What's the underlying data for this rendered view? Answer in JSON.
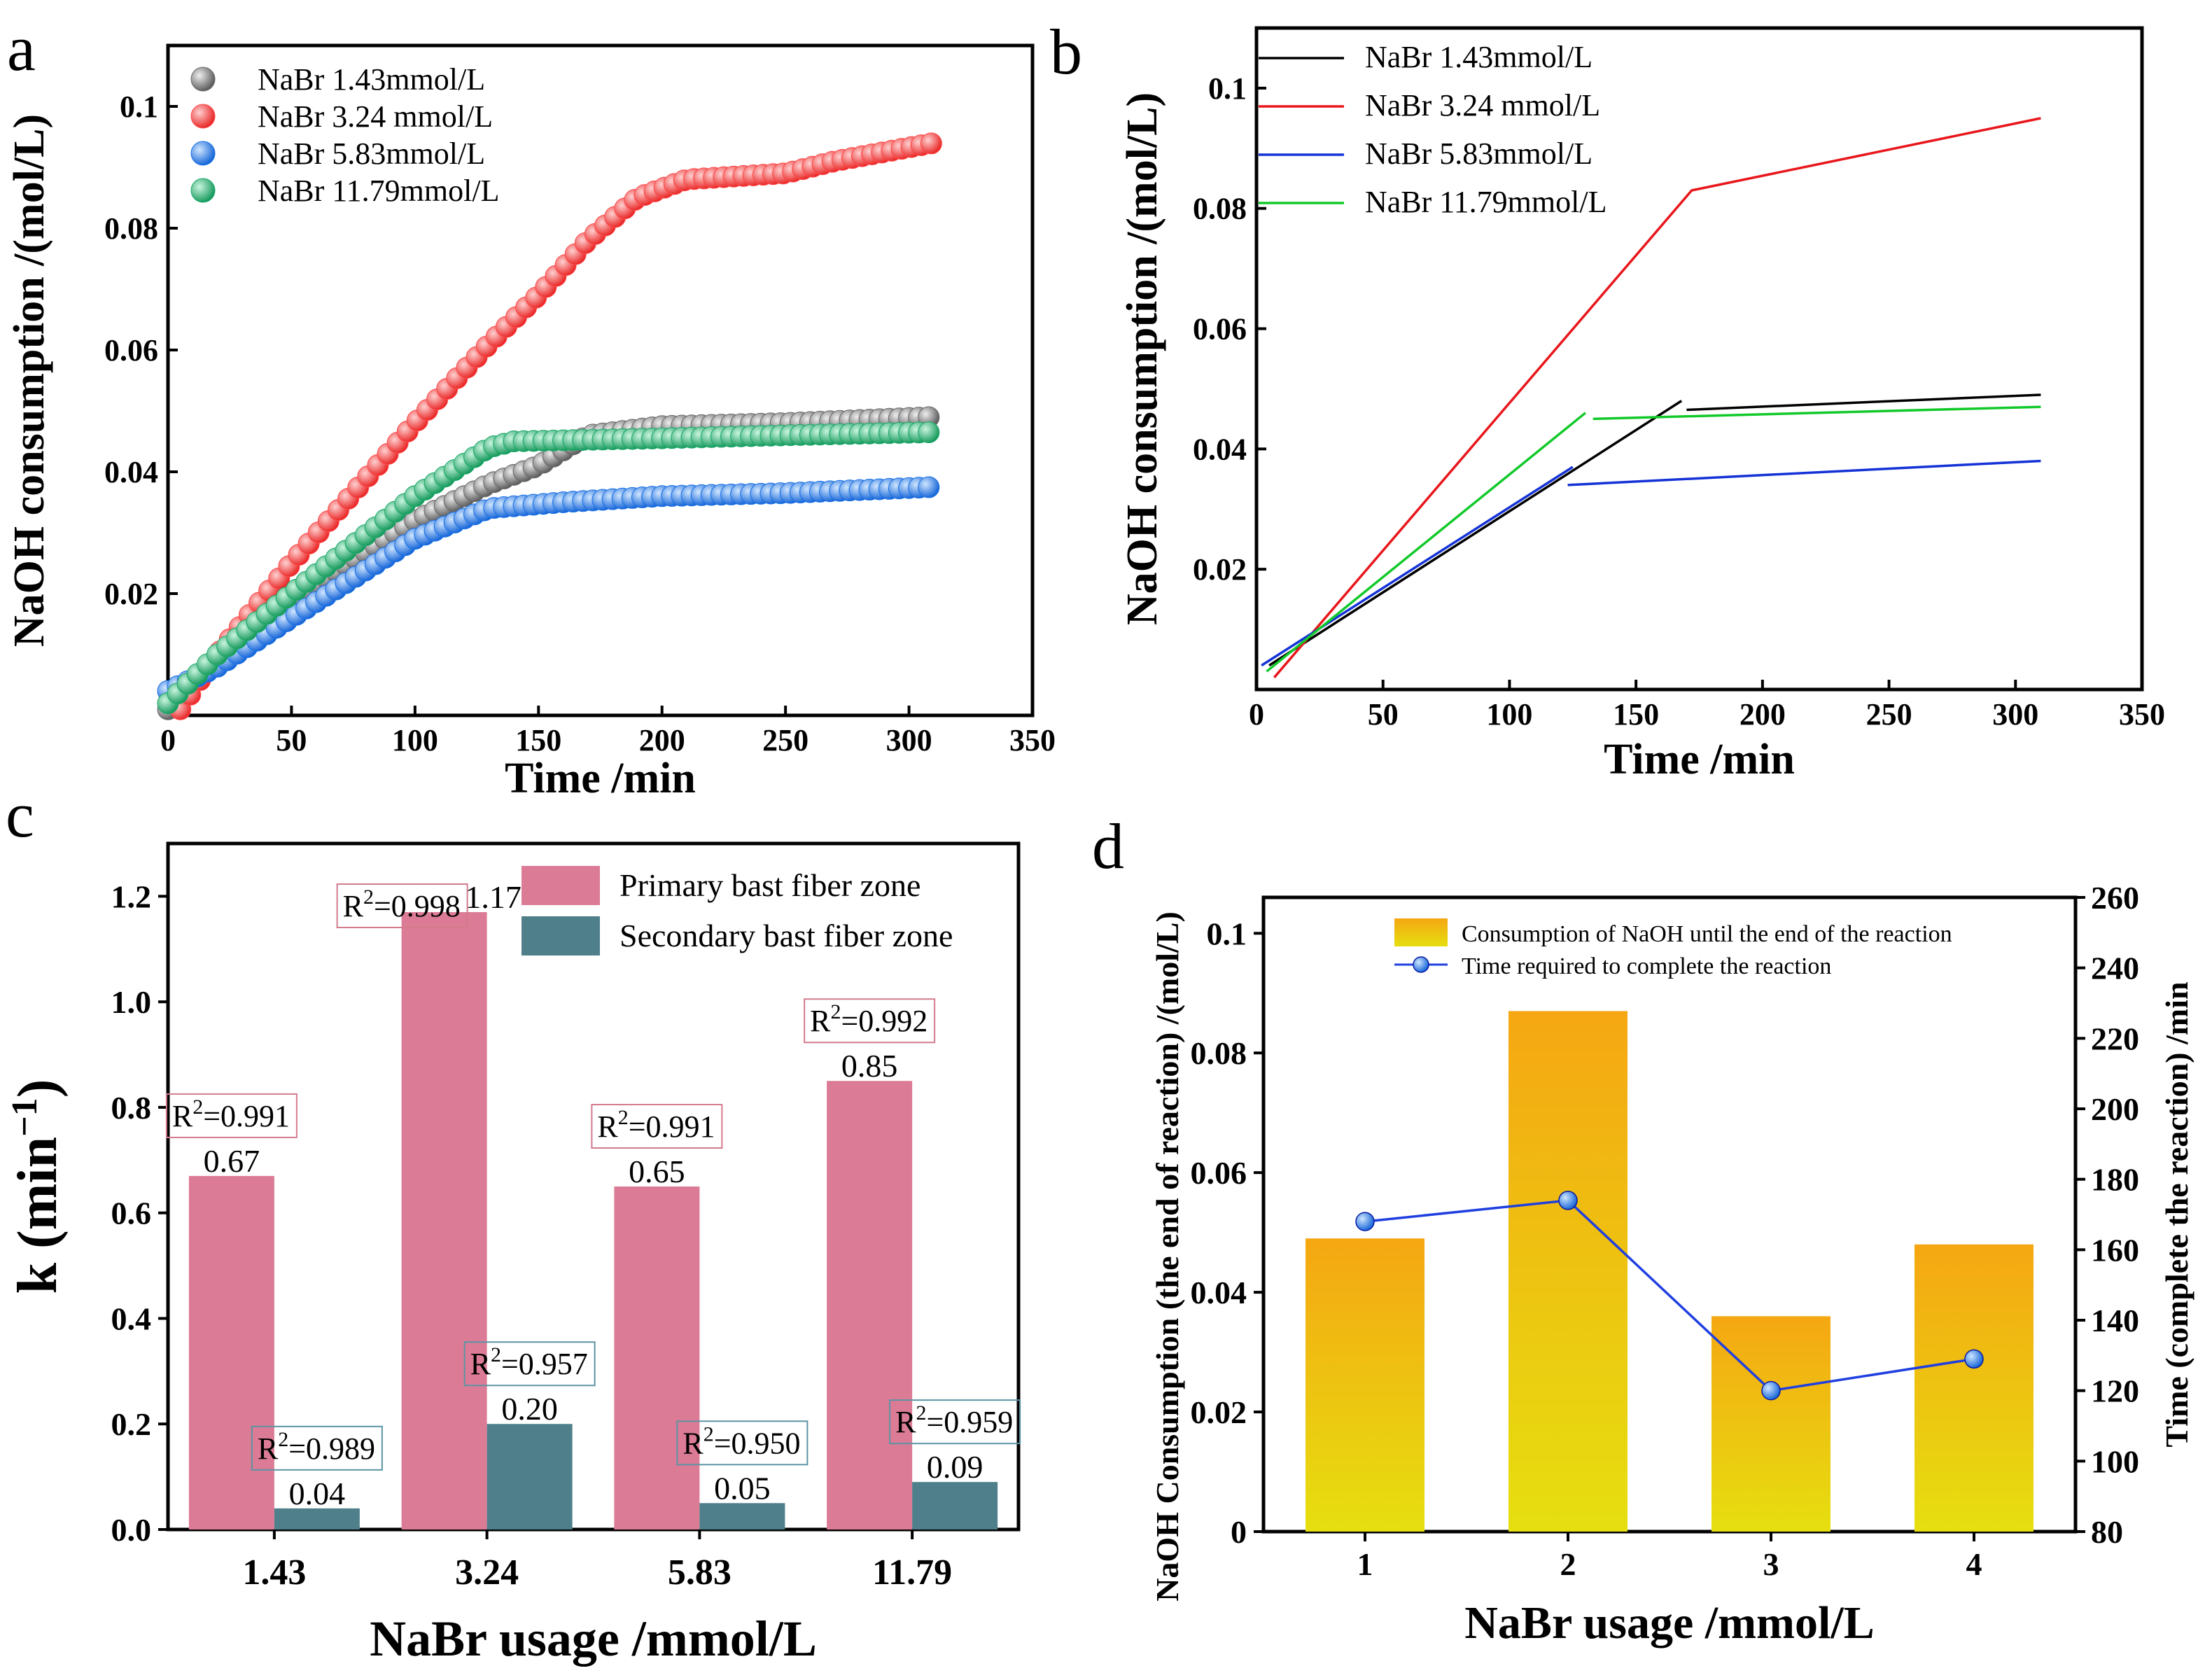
{
  "colors": {
    "black": "#000000",
    "red": "#e8161b",
    "blue": "#1432d6",
    "green": "#12c92a",
    "gray_pt": "#6a6a6a",
    "red_pt": "#ff4a4a",
    "blue_pt": "#1a72e6",
    "green_pt": "#19a869",
    "pink": "#dc7b95",
    "teal": "#4e7f8a",
    "pink_box": "#d27b8d",
    "teal_box": "#5b94a4",
    "bar_top": "#f5a712",
    "bar_bottom": "#e6df10",
    "line_d": "#1f3fe0"
  },
  "chart_data": [
    {
      "id": "a",
      "panel_label": "a",
      "type": "scatter",
      "title": "",
      "xlabel": "Time /min",
      "ylabel": "NaOH consumption /(mol/L)",
      "xlim": [
        0,
        350
      ],
      "ylim": [
        0,
        0.11
      ],
      "xticks": [
        0,
        50,
        100,
        150,
        200,
        250,
        300,
        350
      ],
      "xtick_labels": [
        "0",
        "50",
        "100",
        "150",
        "200",
        "250",
        "300",
        "350"
      ],
      "yticks": [
        0.02,
        0.04,
        0.06,
        0.08,
        0.1
      ],
      "ytick_labels": [
        "0.02",
        "0.04",
        "0.06",
        "0.08",
        "0.1"
      ],
      "legend_position": "top-left",
      "series": [
        {
          "name": "NaBr 1.43mmol/L",
          "color_key": "gray_pt",
          "points": [
            [
              0,
              0.001
            ],
            [
              20,
              0.009
            ],
            [
              50,
              0.019
            ],
            [
              100,
              0.032
            ],
            [
              130,
              0.038
            ],
            [
              150,
              0.041
            ],
            [
              170,
              0.046
            ],
            [
              200,
              0.0475
            ],
            [
              250,
              0.048
            ],
            [
              310,
              0.049
            ]
          ]
        },
        {
          "name": "NaBr 3.24 mmol/L",
          "color_key": "red_pt",
          "points": [
            [
              5,
              0.001
            ],
            [
              20,
              0.01
            ],
            [
              50,
              0.025
            ],
            [
              100,
              0.048
            ],
            [
              130,
              0.061
            ],
            [
              150,
              0.069
            ],
            [
              170,
              0.078
            ],
            [
              190,
              0.085
            ],
            [
              210,
              0.088
            ],
            [
              250,
              0.089
            ],
            [
              270,
              0.091
            ],
            [
              310,
              0.094
            ]
          ]
        },
        {
          "name": "NaBr 5.83mmol/L",
          "color_key": "blue_pt",
          "points": [
            [
              0,
              0.004
            ],
            [
              20,
              0.008
            ],
            [
              50,
              0.016
            ],
            [
              100,
              0.029
            ],
            [
              130,
              0.034
            ],
            [
              160,
              0.035
            ],
            [
              200,
              0.036
            ],
            [
              250,
              0.0365
            ],
            [
              310,
              0.0375
            ]
          ]
        },
        {
          "name": "NaBr 11.79mmol/L",
          "color_key": "green_pt",
          "points": [
            [
              0,
              0.002
            ],
            [
              20,
              0.01
            ],
            [
              50,
              0.02
            ],
            [
              100,
              0.036
            ],
            [
              130,
              0.044
            ],
            [
              140,
              0.045
            ],
            [
              200,
              0.0455
            ],
            [
              250,
              0.046
            ],
            [
              310,
              0.0465
            ]
          ]
        }
      ]
    },
    {
      "id": "b",
      "panel_label": "b",
      "type": "line",
      "title": "",
      "xlabel": "Time /min",
      "ylabel": "NaOH consumption /(mol/L)",
      "xlim": [
        0,
        350
      ],
      "ylim": [
        0,
        0.11
      ],
      "xticks": [
        0,
        50,
        100,
        150,
        200,
        250,
        300,
        350
      ],
      "xtick_labels": [
        "0",
        "50",
        "100",
        "150",
        "200",
        "250",
        "300",
        "350"
      ],
      "yticks": [
        0.02,
        0.04,
        0.06,
        0.08,
        0.1
      ],
      "ytick_labels": [
        "0.02",
        "0.04",
        "0.06",
        "0.08",
        "0.1"
      ],
      "legend_position": "top-left",
      "series": [
        {
          "name": "NaBr 1.43mmol/L",
          "color_key": "black",
          "segments": [
            [
              [
                5,
                0.004
              ],
              [
                168,
                0.048
              ]
            ],
            [
              [
                170,
                0.0465
              ],
              [
                310,
                0.049
              ]
            ]
          ]
        },
        {
          "name": "NaBr 3.24 mmol/L",
          "color_key": "red",
          "segments": [
            [
              [
                7,
                0.002
              ],
              [
                172,
                0.083
              ],
              [
                310,
                0.095
              ]
            ]
          ]
        },
        {
          "name": "NaBr 5.83mmol/L",
          "color_key": "blue",
          "segments": [
            [
              [
                2,
                0.004
              ],
              [
                125,
                0.037
              ]
            ],
            [
              [
                123,
                0.034
              ],
              [
                310,
                0.038
              ]
            ]
          ]
        },
        {
          "name": "NaBr 11.79mmol/L",
          "color_key": "green",
          "segments": [
            [
              [
                4,
                0.003
              ],
              [
                130,
                0.046
              ]
            ],
            [
              [
                133,
                0.045
              ],
              [
                310,
                0.047
              ]
            ]
          ]
        }
      ]
    },
    {
      "id": "c",
      "panel_label": "c",
      "type": "bar",
      "title": "",
      "xlabel": "NaBr usage /mmol/L",
      "ylabel_main": "k (min",
      "ylabel_sup": "−1",
      "ylabel_tail": ")",
      "ylim": [
        0,
        1.3
      ],
      "yticks": [
        0.0,
        0.2,
        0.4,
        0.6,
        0.8,
        1.0,
        1.2
      ],
      "ytick_labels": [
        "0.0",
        "0.2",
        "0.4",
        "0.6",
        "0.8",
        "1.0",
        "1.2"
      ],
      "categories": [
        "1.43",
        "3.24",
        "5.83",
        "11.79"
      ],
      "legend_position": "top-right",
      "series": [
        {
          "name": "Primary bast fiber zone",
          "color_key": "pink",
          "values": [
            0.67,
            1.17,
            0.65,
            0.85
          ],
          "value_labels": [
            "0.67",
            "1.17",
            "0.65",
            "0.85"
          ],
          "r2": [
            "=0.991",
            "=0.998",
            "=0.991",
            "=0.992"
          ]
        },
        {
          "name": "Secondary bast fiber zone",
          "color_key": "teal",
          "values": [
            0.04,
            0.2,
            0.05,
            0.09
          ],
          "value_labels": [
            "0.04",
            "0.20",
            "0.05",
            "0.09"
          ],
          "r2": [
            "=0.989",
            "=0.957",
            "=0.950",
            "=0.959"
          ]
        }
      ]
    },
    {
      "id": "d",
      "panel_label": "d",
      "type": "bar",
      "title": "",
      "xlabel": "NaBr usage /mmol/L",
      "ylabel_left": "NaOH Consumption (the end of reaction) /(mol/L)",
      "ylabel_right": "Time (complete the reaction) /min",
      "categories": [
        "1",
        "2",
        "3",
        "4"
      ],
      "x": [
        1,
        2,
        3,
        4
      ],
      "xlim": [
        0.5,
        4.5
      ],
      "ylim_left": [
        0,
        0.106
      ],
      "ylim_right": [
        80,
        260
      ],
      "yticks_left": [
        0,
        0.02,
        0.04,
        0.06,
        0.08,
        0.1
      ],
      "ytick_labels_left": [
        "0",
        "0.02",
        "0.04",
        "0.06",
        "0.08",
        "0.1"
      ],
      "yticks_right": [
        80,
        100,
        120,
        140,
        160,
        180,
        200,
        220,
        240,
        260
      ],
      "ytick_labels_right": [
        "80",
        "100",
        "120",
        "140",
        "160",
        "180",
        "200",
        "220",
        "240",
        "260"
      ],
      "legend_position": "top-right",
      "series": [
        {
          "name": "Consumption of NaOH until the end of the reaction",
          "axis": "left",
          "kind": "bar",
          "values": [
            0.049,
            0.087,
            0.036,
            0.048
          ]
        },
        {
          "name": "Time required to complete the reaction",
          "axis": "right",
          "kind": "line",
          "values": [
            168,
            174,
            120,
            129
          ]
        }
      ]
    }
  ]
}
